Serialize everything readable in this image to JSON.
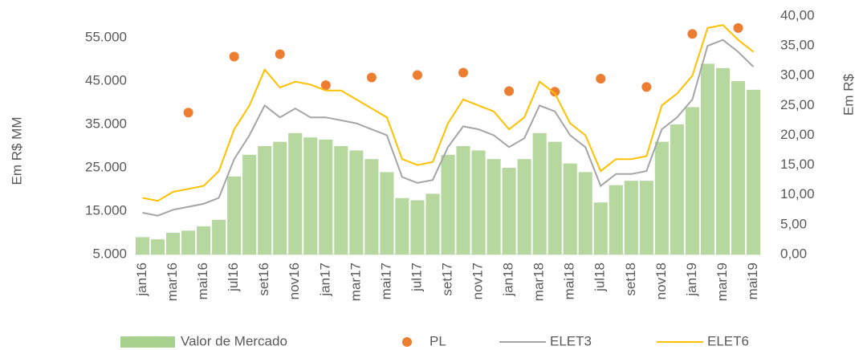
{
  "chart_data": {
    "type": "combo",
    "y_label": "Em R$ MM",
    "y2_label": "Em R$",
    "categories": [
      "jan16",
      null,
      "mar16",
      null,
      "mai16",
      null,
      "jul16",
      null,
      "set16",
      null,
      "nov16",
      null,
      "jan17",
      null,
      "mar17",
      null,
      "mai17",
      null,
      "jul17",
      null,
      "set17",
      null,
      "nov17",
      null,
      "jan18",
      null,
      "mar18",
      null,
      "mai18",
      null,
      "jul18",
      null,
      "set18",
      null,
      "nov18",
      null,
      "jan19",
      null,
      "mar19",
      null,
      "mai19"
    ],
    "ylim": [
      5000,
      60000
    ],
    "yticks": [
      {
        "value": 5000,
        "label": "5.000"
      },
      {
        "value": 15000,
        "label": "15.000"
      },
      {
        "value": 25000,
        "label": "25.000"
      },
      {
        "value": 35000,
        "label": "35.000"
      },
      {
        "value": 45000,
        "label": "45.000"
      },
      {
        "value": 55000,
        "label": "55.000"
      }
    ],
    "y2lim": [
      0,
      40
    ],
    "y2ticks": [
      {
        "value": 0,
        "label": "0,00"
      },
      {
        "value": 5,
        "label": "5,00"
      },
      {
        "value": 10,
        "label": "10,00"
      },
      {
        "value": 15,
        "label": "15,00"
      },
      {
        "value": 20,
        "label": "20,00"
      },
      {
        "value": 25,
        "label": "25,00"
      },
      {
        "value": 30,
        "label": "30,00"
      },
      {
        "value": 35,
        "label": "35,00"
      },
      {
        "value": 40,
        "label": "40,00"
      }
    ],
    "series": [
      {
        "name": "Valor de Mercado",
        "kind": "bar",
        "color": "#a9d18e",
        "values": [
          9000,
          8500,
          10000,
          10500,
          11500,
          13000,
          23000,
          28000,
          30000,
          31000,
          33000,
          32000,
          31500,
          30000,
          29000,
          27000,
          24000,
          18000,
          17500,
          19000,
          28000,
          30000,
          29000,
          27000,
          25000,
          27000,
          33000,
          31000,
          26000,
          24000,
          17000,
          21000,
          22000,
          22000,
          31000,
          35000,
          39000,
          49000,
          48000,
          45000,
          43000
        ]
      },
      {
        "name": "PL",
        "kind": "scatter",
        "axis": "y2",
        "color": "#ed7d31",
        "values": [
          null,
          null,
          null,
          23.8,
          null,
          null,
          33.2,
          null,
          null,
          33.6,
          null,
          null,
          28.4,
          null,
          null,
          29.7,
          null,
          null,
          30.1,
          null,
          null,
          30.5,
          null,
          null,
          27.4,
          null,
          null,
          27.3,
          null,
          null,
          29.5,
          null,
          null,
          28.1,
          null,
          null,
          37,
          null,
          null,
          38,
          null
        ]
      },
      {
        "name": "ELET3",
        "kind": "line",
        "axis": "y2",
        "color": "#a5a5a5",
        "values": [
          7,
          6.5,
          7.5,
          8,
          8.5,
          9.5,
          16,
          20,
          25,
          23,
          24.5,
          23,
          23,
          22.5,
          22,
          21,
          20,
          13,
          12,
          12.5,
          18,
          21.5,
          21,
          20,
          18,
          19.5,
          25,
          24,
          20,
          18,
          11.5,
          13.5,
          13.5,
          14,
          21,
          23,
          26,
          35,
          36,
          34,
          31.5
        ]
      },
      {
        "name": "ELET6",
        "kind": "line",
        "axis": "y2",
        "color": "#ffc000",
        "values": [
          9.5,
          9,
          10.5,
          11,
          11.5,
          14,
          21,
          25,
          31,
          28,
          29,
          28.5,
          27.5,
          27.5,
          26,
          24.5,
          23,
          16,
          15,
          15.5,
          22,
          26,
          25,
          24,
          21,
          23,
          29,
          27,
          22,
          20,
          14,
          16,
          16,
          16.5,
          25,
          27,
          30,
          38,
          38.5,
          36,
          34
        ]
      }
    ]
  }
}
